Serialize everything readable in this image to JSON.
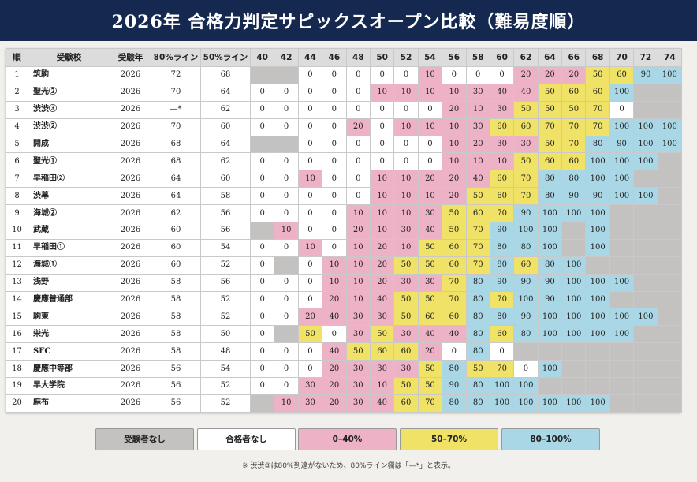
{
  "title": "2026年 合格力判定サピックスオープン比較（難易度順）",
  "headers": {
    "idx": "順",
    "school": "受験校",
    "year": "受験年",
    "line80": "80%ライン",
    "line50": "50%ライン",
    "scores": [
      "40",
      "42",
      "44",
      "46",
      "48",
      "50",
      "52",
      "54",
      "56",
      "58",
      "60",
      "62",
      "64",
      "66",
      "68",
      "70",
      "72",
      "74"
    ]
  },
  "rows": [
    {
      "idx": "1",
      "school": "筑駒",
      "year": "2026",
      "l80": "72",
      "l50": "68",
      "cells": [
        "",
        "",
        "0",
        "0",
        "0",
        "0",
        "0",
        "10",
        "0",
        "0",
        "0",
        "20",
        "20",
        "20",
        "50",
        "60",
        "90",
        "100"
      ]
    },
    {
      "idx": "2",
      "school": "聖光②",
      "year": "2026",
      "l80": "70",
      "l50": "64",
      "cells": [
        "0",
        "0",
        "0",
        "0",
        "0",
        "10",
        "10",
        "10",
        "10",
        "30",
        "40",
        "40",
        "50",
        "60",
        "60",
        "100",
        "",
        ""
      ]
    },
    {
      "idx": "3",
      "school": "渋渋③",
      "year": "2026",
      "l80": "—*",
      "l50": "62",
      "cells": [
        "0",
        "0",
        "0",
        "0",
        "0",
        "0",
        "0",
        "0",
        "20",
        "10",
        "30",
        "50",
        "50",
        "50",
        "70",
        "0",
        "",
        ""
      ]
    },
    {
      "idx": "4",
      "school": "渋渋②",
      "year": "2026",
      "l80": "70",
      "l50": "60",
      "cells": [
        "0",
        "0",
        "0",
        "0",
        "20",
        "0",
        "10",
        "10",
        "10",
        "30",
        "60",
        "60",
        "70",
        "70",
        "70",
        "100",
        "100",
        "100"
      ]
    },
    {
      "idx": "5",
      "school": "開成",
      "year": "2026",
      "l80": "68",
      "l50": "64",
      "cells": [
        "",
        "",
        "0",
        "0",
        "0",
        "0",
        "0",
        "0",
        "10",
        "20",
        "30",
        "30",
        "50",
        "70",
        "80",
        "90",
        "100",
        "100"
      ]
    },
    {
      "idx": "6",
      "school": "聖光①",
      "year": "2026",
      "l80": "68",
      "l50": "62",
      "cells": [
        "0",
        "0",
        "0",
        "0",
        "0",
        "0",
        "0",
        "0",
        "10",
        "10",
        "10",
        "50",
        "60",
        "60",
        "100",
        "100",
        "100",
        ""
      ]
    },
    {
      "idx": "7",
      "school": "早稲田②",
      "year": "2026",
      "l80": "64",
      "l50": "60",
      "cells": [
        "0",
        "0",
        "10",
        "0",
        "0",
        "10",
        "10",
        "20",
        "20",
        "40",
        "60",
        "70",
        "80",
        "80",
        "100",
        "100",
        "",
        ""
      ]
    },
    {
      "idx": "8",
      "school": "渋幕",
      "year": "2026",
      "l80": "64",
      "l50": "58",
      "cells": [
        "0",
        "0",
        "0",
        "0",
        "0",
        "10",
        "10",
        "10",
        "20",
        "50",
        "60",
        "70",
        "80",
        "90",
        "90",
        "100",
        "100",
        ""
      ]
    },
    {
      "idx": "9",
      "school": "海城②",
      "year": "2026",
      "l80": "62",
      "l50": "56",
      "cells": [
        "0",
        "0",
        "0",
        "0",
        "10",
        "10",
        "10",
        "30",
        "50",
        "60",
        "70",
        "90",
        "100",
        "100",
        "100",
        "",
        "",
        ""
      ]
    },
    {
      "idx": "10",
      "school": "武蔵",
      "year": "2026",
      "l80": "60",
      "l50": "56",
      "cells": [
        "",
        "10",
        "0",
        "0",
        "20",
        "10",
        "30",
        "40",
        "50",
        "70",
        "90",
        "100",
        "100",
        "",
        "100",
        "",
        "",
        ""
      ]
    },
    {
      "idx": "11",
      "school": "早稲田①",
      "year": "2026",
      "l80": "60",
      "l50": "54",
      "cells": [
        "0",
        "0",
        "10",
        "0",
        "10",
        "20",
        "10",
        "50",
        "60",
        "70",
        "80",
        "80",
        "100",
        "",
        "100",
        "",
        "",
        ""
      ]
    },
    {
      "idx": "12",
      "school": "海城①",
      "year": "2026",
      "l80": "60",
      "l50": "52",
      "cells": [
        "0",
        "",
        "0",
        "10",
        "10",
        "20",
        "50",
        "50",
        "60",
        "70",
        "80",
        "60",
        "80",
        "100",
        "",
        "",
        "",
        ""
      ]
    },
    {
      "idx": "13",
      "school": "浅野",
      "year": "2026",
      "l80": "58",
      "l50": "56",
      "cells": [
        "0",
        "0",
        "0",
        "10",
        "10",
        "20",
        "30",
        "30",
        "70",
        "80",
        "90",
        "90",
        "90",
        "100",
        "100",
        "100",
        "",
        ""
      ]
    },
    {
      "idx": "14",
      "school": "慶應普通部",
      "year": "2026",
      "l80": "58",
      "l50": "52",
      "cells": [
        "0",
        "0",
        "0",
        "20",
        "10",
        "40",
        "50",
        "50",
        "70",
        "80",
        "70",
        "100",
        "90",
        "100",
        "100",
        "",
        "",
        ""
      ]
    },
    {
      "idx": "15",
      "school": "駒東",
      "year": "2026",
      "l80": "58",
      "l50": "52",
      "cells": [
        "0",
        "0",
        "20",
        "40",
        "30",
        "30",
        "50",
        "60",
        "60",
        "80",
        "80",
        "90",
        "100",
        "100",
        "100",
        "100",
        "100",
        ""
      ]
    },
    {
      "idx": "16",
      "school": "栄光",
      "year": "2026",
      "l80": "58",
      "l50": "50",
      "cells": [
        "0",
        "",
        "50",
        "0",
        "30",
        "50",
        "30",
        "40",
        "40",
        "80",
        "60",
        "80",
        "100",
        "100",
        "100",
        "100",
        "",
        ""
      ]
    },
    {
      "idx": "17",
      "school": "SFC",
      "year": "2026",
      "l80": "58",
      "l50": "48",
      "cells": [
        "0",
        "0",
        "0",
        "40",
        "50",
        "60",
        "60",
        "20",
        "0",
        "80",
        "0",
        "",
        "",
        "",
        "",
        "",
        "",
        ""
      ]
    },
    {
      "idx": "18",
      "school": "慶應中等部",
      "year": "2026",
      "l80": "56",
      "l50": "54",
      "cells": [
        "0",
        "0",
        "0",
        "20",
        "30",
        "30",
        "30",
        "50",
        "80",
        "50",
        "70",
        "0",
        "100",
        "",
        "",
        "",
        "",
        ""
      ]
    },
    {
      "idx": "19",
      "school": "早大学院",
      "year": "2026",
      "l80": "56",
      "l50": "52",
      "cells": [
        "0",
        "0",
        "30",
        "20",
        "30",
        "10",
        "50",
        "50",
        "90",
        "80",
        "100",
        "100",
        "",
        "",
        "",
        "",
        "",
        ""
      ]
    },
    {
      "idx": "20",
      "school": "麻布",
      "year": "2026",
      "l80": "56",
      "l50": "52",
      "cells": [
        "",
        "10",
        "30",
        "20",
        "30",
        "40",
        "60",
        "70",
        "80",
        "80",
        "100",
        "100",
        "100",
        "100",
        "100",
        "",
        "",
        ""
      ]
    }
  ],
  "legend": [
    "受験者なし",
    "合格者なし",
    "0–40%",
    "50–70%",
    "80–100%"
  ],
  "colors": {
    "none": "#c4c2c0",
    "zero": "#ffffff",
    "low": "#eeb2c6",
    "mid": "#efe266",
    "high": "#a9d7e6",
    "header": "#15284f"
  },
  "footnote": "※ 渋渋③は80%到達がないため、80%ライン欄は「—*」と表示。"
}
